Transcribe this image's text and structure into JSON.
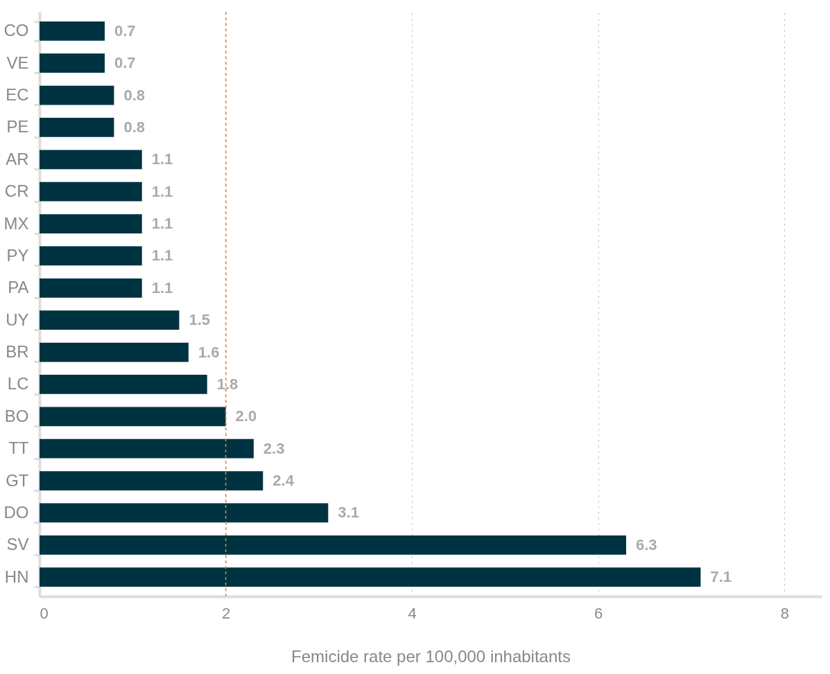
{
  "chart_data": {
    "type": "bar",
    "orientation": "horizontal",
    "xlabel": "Femicide rate per 100,000 inhabitants",
    "categories": [
      "CO",
      "VE",
      "EC",
      "PE",
      "AR",
      "CR",
      "MX",
      "PY",
      "PA",
      "UY",
      "BR",
      "LC",
      "BO",
      "TT",
      "GT",
      "DO",
      "SV",
      "HN"
    ],
    "values": [
      0.7,
      0.7,
      0.8,
      0.8,
      1.1,
      1.1,
      1.1,
      1.1,
      1.1,
      1.5,
      1.6,
      1.8,
      2.0,
      2.3,
      2.4,
      3.1,
      6.3,
      7.1
    ],
    "value_labels": [
      "0.7",
      "0.7",
      "0.8",
      "0.8",
      "1.1",
      "1.1",
      "1.1",
      "1.1",
      "1.1",
      "1.5",
      "1.6",
      "1.8",
      "2.0",
      "2.3",
      "2.4",
      "3.1",
      "6.3",
      "7.1"
    ],
    "color": "#003341",
    "xlim": [
      0,
      8.4
    ],
    "xticks": [
      0,
      2,
      4,
      6,
      8
    ],
    "grid": "x",
    "ref_lines": [
      {
        "axis": "x",
        "value": 2.0,
        "color": "#e8873a",
        "line_style": "dashed"
      }
    ]
  }
}
